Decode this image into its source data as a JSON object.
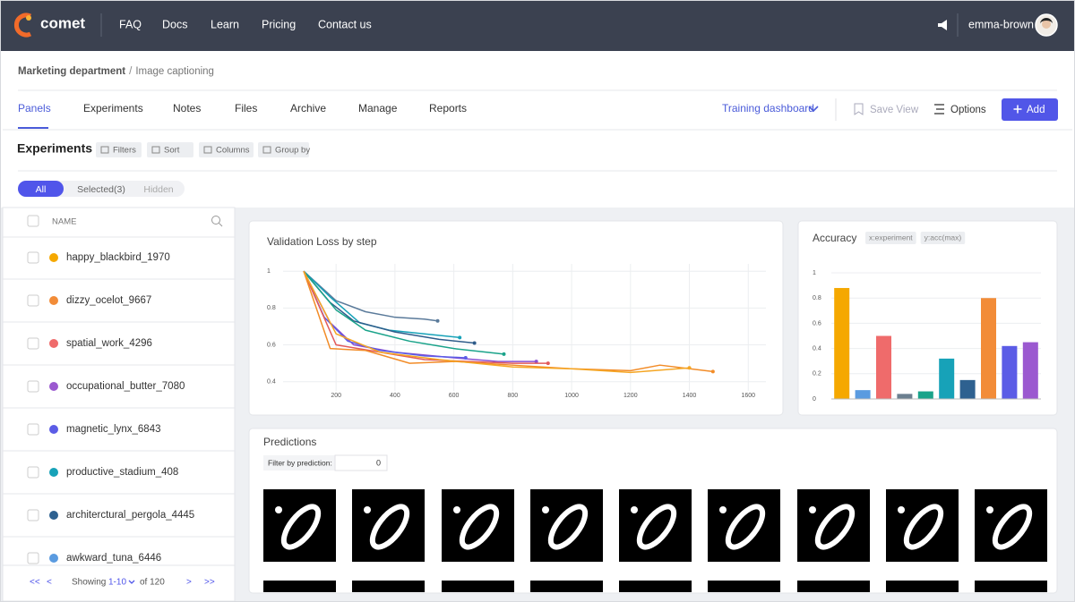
{
  "nav": {
    "logo": "comet",
    "links": [
      "FAQ",
      "Docs",
      "Learn",
      "Pricing",
      "Contact us"
    ],
    "user": "emma-brown"
  },
  "breadcrumb": {
    "project": "Marketing department",
    "separator": "/",
    "page": "Image captioning"
  },
  "tabs": {
    "items": [
      "Panels",
      "Experiments",
      "Notes",
      "Files",
      "Archive",
      "Manage",
      "Reports"
    ],
    "active": 0,
    "view": "Training dashboard",
    "save": "Save View",
    "options": "Options",
    "add": "Add"
  },
  "toolbar": {
    "title": "Experiments",
    "buttons": [
      "Filters",
      "Sort",
      "Columns",
      "Group by"
    ]
  },
  "filter_tabs": {
    "items": [
      "All",
      "Selected(3)",
      "Hidden"
    ],
    "active": 0
  },
  "experiments": {
    "column": "NAME",
    "rows": [
      {
        "name": "happy_blackbird_1970",
        "color": "#f5a800"
      },
      {
        "name": "dizzy_ocelot_9667",
        "color": "#f28c38"
      },
      {
        "name": "spatial_work_4296",
        "color": "#ef6b6b"
      },
      {
        "name": "occupational_butter_7080",
        "color": "#9b59d0"
      },
      {
        "name": "magnetic_lynx_6843",
        "color": "#5b5ce6"
      },
      {
        "name": "productive_stadium_408",
        "color": "#17a2b8"
      },
      {
        "name": "architerctural_pergola_4445",
        "color": "#2e6190"
      },
      {
        "name": "awkward_tuna_6446",
        "color": "#5a9be0"
      }
    ]
  },
  "pagination": {
    "first": "<<",
    "prev": "<",
    "showing": "Showing",
    "range": "1-10",
    "of": "of 120",
    "next": ">",
    "last": ">>"
  },
  "chart_data": [
    {
      "type": "line",
      "title": "Validation Loss by step",
      "xlim": [
        20,
        1660
      ],
      "ylim": [
        0.35,
        1.04
      ],
      "xticks": [
        200,
        400,
        600,
        800,
        1000,
        1200,
        1400,
        1600
      ],
      "yticks": [
        0.4,
        0.6,
        0.8,
        1
      ],
      "grid": true,
      "series": [
        {
          "color": "#5a7a9a",
          "x": [
            90,
            200,
            300,
            400,
            500,
            545
          ],
          "values": [
            1,
            0.84,
            0.78,
            0.75,
            0.74,
            0.73
          ]
        },
        {
          "color": "#17a2b8",
          "x": [
            90,
            180,
            280,
            380,
            500,
            620
          ],
          "values": [
            1,
            0.86,
            0.72,
            0.68,
            0.66,
            0.64
          ]
        },
        {
          "color": "#2e5c8a",
          "x": [
            90,
            180,
            260,
            400,
            550,
            670
          ],
          "values": [
            1,
            0.83,
            0.73,
            0.67,
            0.63,
            0.61
          ]
        },
        {
          "color": "#1aa38a",
          "x": [
            90,
            200,
            300,
            450,
            600,
            770
          ],
          "values": [
            1,
            0.79,
            0.68,
            0.62,
            0.58,
            0.55
          ]
        },
        {
          "color": "#8a4fd0",
          "x": [
            90,
            180,
            260,
            400,
            600,
            750,
            880
          ],
          "values": [
            1,
            0.72,
            0.6,
            0.56,
            0.53,
            0.51,
            0.51
          ]
        },
        {
          "color": "#5b5ce6",
          "x": [
            90,
            160,
            240,
            350,
            500,
            640
          ],
          "values": [
            1,
            0.75,
            0.62,
            0.57,
            0.54,
            0.53
          ]
        },
        {
          "color": "#e25a5a",
          "x": [
            90,
            200,
            350,
            500,
            650,
            800,
            920
          ],
          "values": [
            1,
            0.6,
            0.56,
            0.52,
            0.51,
            0.5,
            0.5
          ]
        },
        {
          "color": "#f28c28",
          "x": [
            90,
            180,
            300,
            450,
            600,
            800,
            1000,
            1200,
            1300,
            1480
          ],
          "values": [
            1,
            0.58,
            0.57,
            0.5,
            0.51,
            0.49,
            0.47,
            0.46,
            0.49,
            0.455
          ]
        },
        {
          "color": "#f5a623",
          "x": [
            90,
            200,
            350,
            550,
            800,
            1000,
            1200,
            1400
          ],
          "values": [
            1,
            0.66,
            0.56,
            0.52,
            0.48,
            0.47,
            0.45,
            0.475
          ]
        }
      ]
    },
    {
      "type": "bar",
      "title": "Accuracy",
      "tags": [
        "x:experiment",
        "y:acc(max)"
      ],
      "categories": [
        null,
        null,
        null,
        null,
        null,
        null,
        null,
        null,
        null,
        null
      ],
      "values": [
        0.88,
        0.07,
        0.5,
        0.04,
        0.06,
        0.32,
        0.15,
        0.8,
        0.42,
        0.45
      ],
      "colors": [
        "#f5a800",
        "#5a9be0",
        "#ef6b6b",
        "#6b7f8f",
        "#1aa38a",
        "#17a2b8",
        "#2e6190",
        "#f28c38",
        "#5b5ce6",
        "#9b59d0"
      ],
      "ylim": [
        0,
        1.05
      ],
      "yticks": [
        0,
        0.2,
        0.4,
        0.6,
        0.8,
        1
      ],
      "grid": true
    }
  ],
  "predictions": {
    "title": "Predictions",
    "filter_label": "Filter by prediction:",
    "filter_value": "0"
  }
}
